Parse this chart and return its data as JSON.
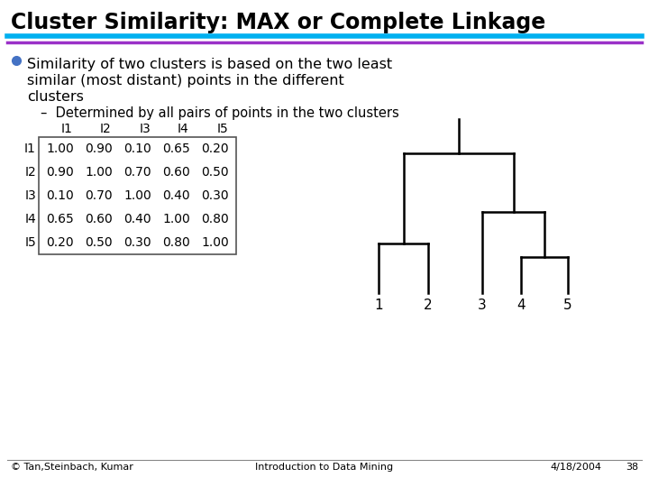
{
  "title": "Cluster Similarity: MAX or Complete Linkage",
  "title_fontsize": 17,
  "bg_color": "#ffffff",
  "line1_color": "#00b0f0",
  "line2_color": "#9b30c8",
  "bullet_color": "#4472c4",
  "matrix_labels": [
    "I1",
    "I2",
    "I3",
    "I4",
    "I5"
  ],
  "matrix_data": [
    [
      1.0,
      0.9,
      0.1,
      0.65,
      0.2
    ],
    [
      0.9,
      1.0,
      0.7,
      0.6,
      0.5
    ],
    [
      0.1,
      0.7,
      1.0,
      0.4,
      0.3
    ],
    [
      0.65,
      0.6,
      0.4,
      1.0,
      0.8
    ],
    [
      0.2,
      0.5,
      0.3,
      0.8,
      1.0
    ]
  ],
  "footer_left": "© Tan,Steinbach, Kumar",
  "footer_center": "Introduction to Data Mining",
  "footer_right": "4/18/2004",
  "footer_page": "38"
}
